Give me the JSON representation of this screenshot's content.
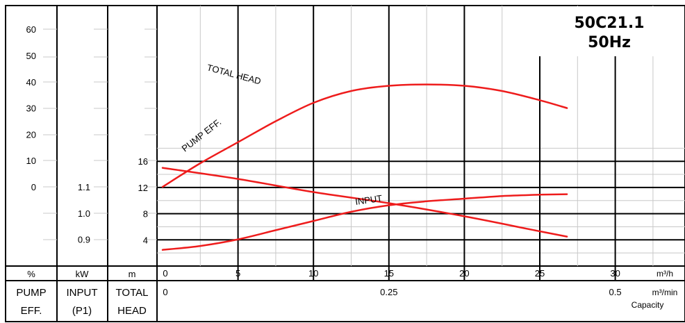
{
  "chart_data": {
    "type": "line",
    "model": "50C21.1",
    "frequency": "50Hz",
    "capacity_label": "Capacity",
    "x_units": {
      "primary": "m³/h",
      "secondary": "m³/min"
    },
    "x_ticks": [
      0,
      5,
      10,
      15,
      20,
      25,
      30
    ],
    "x_ticks_secondary": [
      "0",
      "0.25",
      "0.5"
    ],
    "xlim": [
      0,
      35.5
    ],
    "grid": true,
    "axes": {
      "eff": {
        "unit": "%",
        "footer": [
          "PUMP",
          "EFF."
        ],
        "ticks": [
          "60",
          "50",
          "40",
          "30",
          "20",
          "10",
          "0"
        ]
      },
      "input": {
        "unit": "kW",
        "footer": [
          "INPUT",
          "(P1)"
        ],
        "ticks": [
          "1.1",
          "1.0",
          "0.9"
        ]
      },
      "head": {
        "unit": "m",
        "footer": [
          "TOTAL",
          "HEAD"
        ],
        "ticks": [
          "16",
          "12",
          "8",
          "4"
        ]
      }
    },
    "series": [
      {
        "name": "TOTAL HEAD",
        "axis": "head",
        "x": [
          0,
          5,
          10,
          15,
          20,
          25,
          26.8
        ],
        "y": [
          15.0,
          13.3,
          11.3,
          9.6,
          7.6,
          5.3,
          4.5
        ]
      },
      {
        "name": "PUMP EFF.",
        "axis": "eff",
        "x": [
          0,
          2.5,
          5,
          7.5,
          10,
          12.5,
          15,
          17.5,
          20,
          22.5,
          25,
          26.8
        ],
        "y": [
          0,
          9,
          17,
          25,
          32,
          36.5,
          38.5,
          39,
          38.5,
          36.5,
          33,
          30
        ]
      },
      {
        "name": "INPUT",
        "axis": "input",
        "x": [
          0,
          2.5,
          5,
          7.5,
          10,
          12.5,
          15,
          17.5,
          20,
          22.5,
          25,
          26.8
        ],
        "y": [
          0.86,
          0.875,
          0.9,
          0.935,
          0.97,
          1.005,
          1.03,
          1.045,
          1.055,
          1.065,
          1.07,
          1.072
        ]
      }
    ],
    "colors": {
      "curve": "#ee1c1c",
      "grid": "#000000",
      "minor_grid": "#c8c8c8"
    }
  }
}
